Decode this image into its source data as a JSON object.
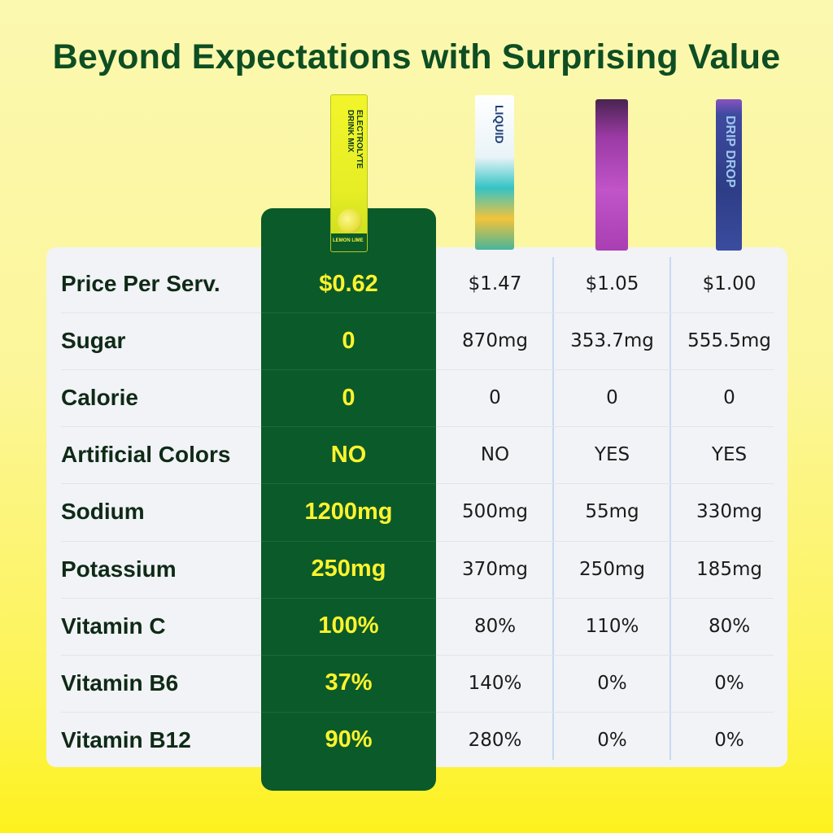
{
  "title": "Beyond Expectations with Surprising Value",
  "products": {
    "ours": {
      "packet_lines": [
        "ELECTROLYTE",
        "DRINK MIX"
      ],
      "flavor": "LEMON LIME"
    },
    "competitor_1": {
      "packet_text": "LIQUID"
    },
    "competitor_2": {},
    "competitor_3": {
      "packet_text": "DRIP DROP"
    }
  },
  "rows": [
    {
      "label": "Price Per Serv.",
      "ours": "$0.62",
      "c1": "$1.47",
      "c2": "$1.05",
      "c3": "$1.00"
    },
    {
      "label": "Sugar",
      "ours": "0",
      "c1": "870mg",
      "c2": "353.7mg",
      "c3": "555.5mg"
    },
    {
      "label": "Calorie",
      "ours": "0",
      "c1": "0",
      "c2": "0",
      "c3": "0"
    },
    {
      "label": "Artificial Colors",
      "ours": "NO",
      "c1": "NO",
      "c2": "YES",
      "c3": "YES"
    },
    {
      "label": "Sodium",
      "ours": "1200mg",
      "c1": "500mg",
      "c2": "55mg",
      "c3": "330mg"
    },
    {
      "label": "Potassium",
      "ours": "250mg",
      "c1": "370mg",
      "c2": "250mg",
      "c3": "185mg"
    },
    {
      "label": "Vitamin C",
      "ours": "100%",
      "c1": "80%",
      "c2": "110%",
      "c3": "80%"
    },
    {
      "label": "Vitamin B6",
      "ours": "37%",
      "c1": "140%",
      "c2": "0%",
      "c3": "0%"
    },
    {
      "label": "Vitamin B12",
      "ours": "90%",
      "c1": "280%",
      "c2": "0%",
      "c3": "0%"
    }
  ],
  "colors": {
    "title": "#0e4e23",
    "highlight_column": "#0b5a2a",
    "highlight_text": "#fff32e",
    "table_background": "#f1f3f6",
    "page_background": "#fcf69a"
  }
}
